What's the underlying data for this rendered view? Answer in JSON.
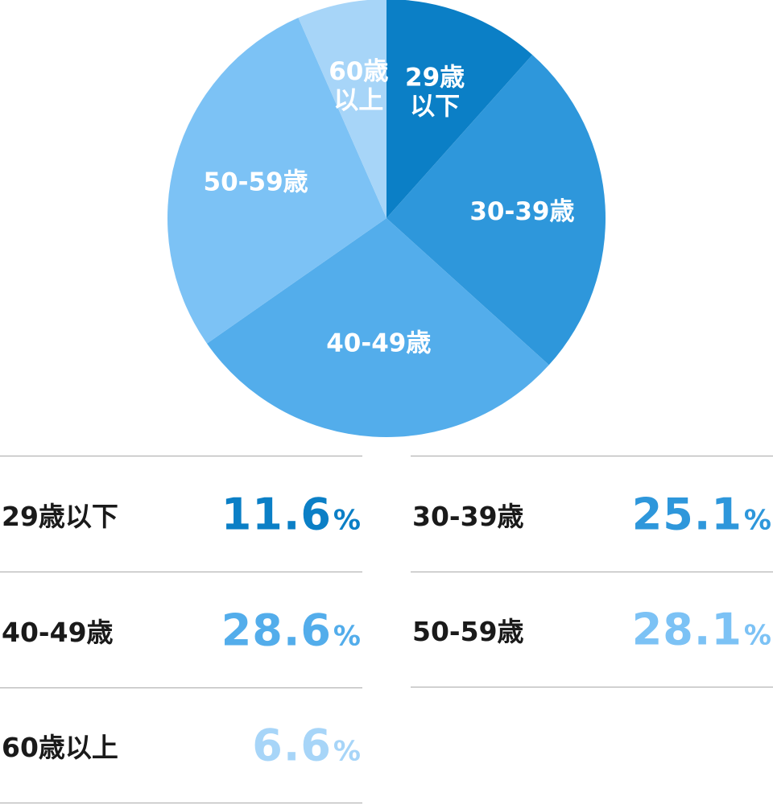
{
  "chart_data": {
    "type": "pie",
    "categories": [
      "29歳以下",
      "30-39歳",
      "40-49歳",
      "50-59歳",
      "60歳以上"
    ],
    "values": [
      11.6,
      25.1,
      28.6,
      28.1,
      6.6
    ],
    "unit": "%",
    "slice_labels": [
      [
        "29歳",
        "以下"
      ],
      [
        "30-39歳"
      ],
      [
        "40-49歳"
      ],
      [
        "50-59歳"
      ],
      [
        "60歳",
        "以上"
      ]
    ],
    "colors": [
      "#0b7fc6",
      "#2e97db",
      "#53adeb",
      "#7cc2f5",
      "#a7d5f8"
    ],
    "legend": [
      {
        "label": "29歳以下",
        "value": "11.6",
        "unit": "%",
        "color": "#0b7fc6"
      },
      {
        "label": "30-39歳",
        "value": "25.1",
        "unit": "%",
        "color": "#2e97db"
      },
      {
        "label": "40-49歳",
        "value": "28.6",
        "unit": "%",
        "color": "#53adeb"
      },
      {
        "label": "50-59歳",
        "value": "28.1",
        "unit": "%",
        "color": "#7cc2f5"
      },
      {
        "label": "60歳以上",
        "value": "6.6",
        "unit": "%",
        "color": "#a7d5f8"
      }
    ]
  }
}
